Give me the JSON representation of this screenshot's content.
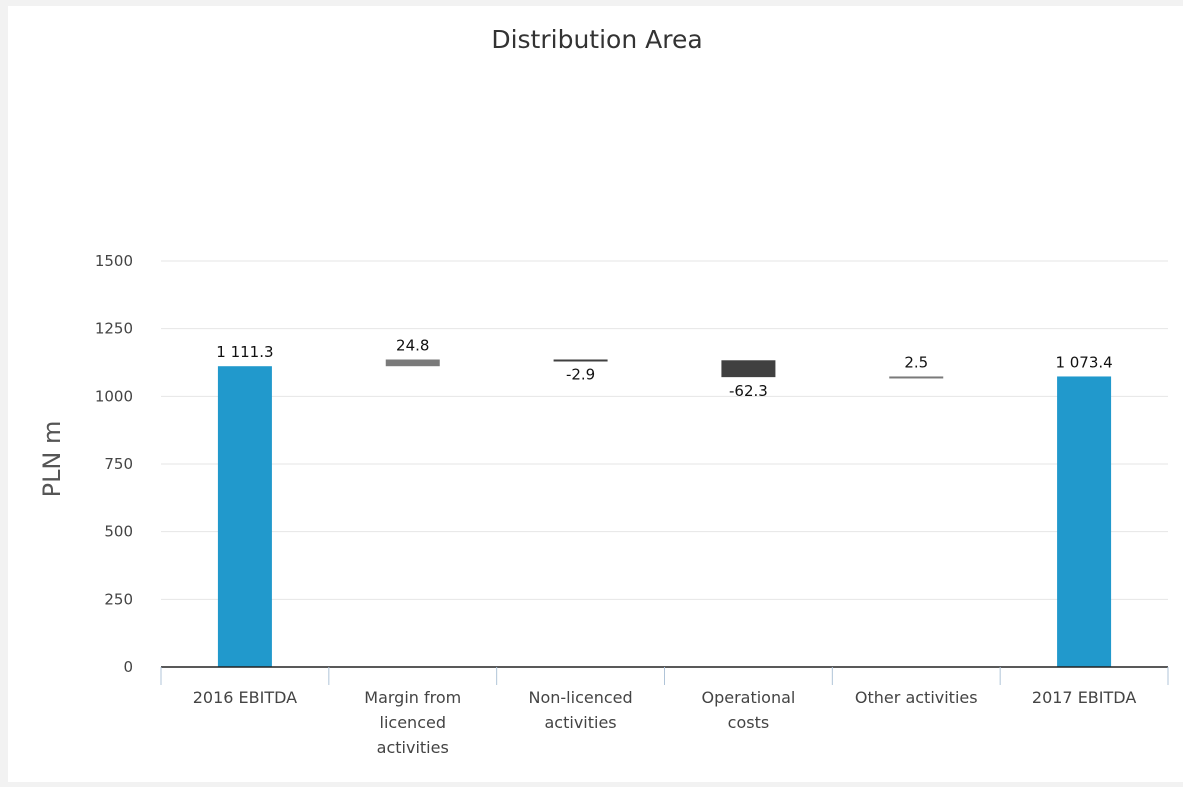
{
  "chart_data": {
    "type": "bar",
    "subtype": "waterfall",
    "title": "Distribution Area",
    "ylabel": "PLN m",
    "xlabel": "",
    "ylim": [
      0,
      1500
    ],
    "yticks": [
      0,
      250,
      500,
      750,
      1000,
      1250,
      1500
    ],
    "ytick_labels": [
      "0",
      "250",
      "500",
      "750",
      "1000",
      "1250",
      "1500"
    ],
    "grid": true,
    "legend": "none",
    "categories": [
      "2016 EBITDA",
      "Margin from licenced activities",
      "Non-licenced activities",
      "Operational costs",
      "Other activities",
      "2017 EBITDA"
    ],
    "category_lines": [
      [
        "2016 EBITDA"
      ],
      [
        "Margin from",
        "licenced",
        "activities"
      ],
      [
        "Non-licenced",
        "activities"
      ],
      [
        "Operational",
        "costs"
      ],
      [
        "Other activities"
      ],
      [
        "2017 EBITDA"
      ]
    ],
    "values": [
      1111.3,
      24.8,
      -2.9,
      -62.3,
      2.5,
      1073.4
    ],
    "kinds": [
      "total",
      "delta",
      "delta",
      "delta",
      "delta",
      "total"
    ],
    "data_labels": [
      "1 111.3",
      "24.8",
      "-2.9",
      "-62.3",
      "2.5",
      "1 073.4"
    ],
    "colors": {
      "total": "#2199cc",
      "increase": "#7a7a7a",
      "decrease": "#404040",
      "axis": "#222222",
      "grid": "#e6e6e6",
      "category_tick": "#b0c4d8"
    }
  }
}
